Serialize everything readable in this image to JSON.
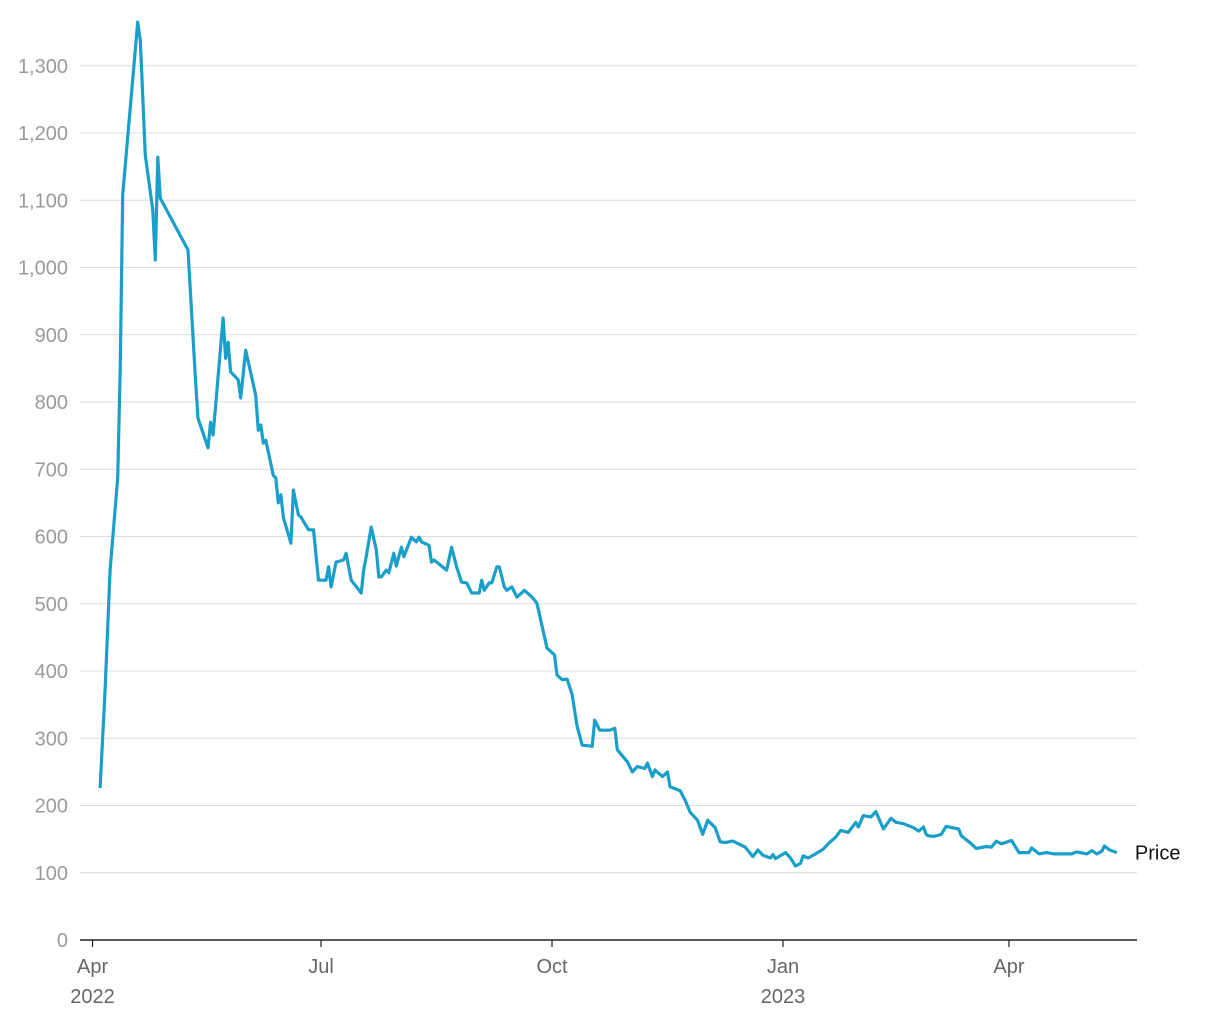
{
  "chart_data": {
    "type": "line",
    "x": [
      "2022-04-04",
      "2022-04-06",
      "2022-04-08",
      "2022-04-11",
      "2022-04-12",
      "2022-04-13",
      "2022-04-19",
      "2022-04-20",
      "2022-04-22",
      "2022-04-25",
      "2022-04-26",
      "2022-04-27",
      "2022-04-28",
      "2022-05-09",
      "2022-05-12",
      "2022-05-13",
      "2022-05-17",
      "2022-05-18",
      "2022-05-19",
      "2022-05-23",
      "2022-05-24",
      "2022-05-25",
      "2022-05-26",
      "2022-05-29",
      "2022-05-30",
      "2022-06-01",
      "2022-06-05",
      "2022-06-06",
      "2022-06-07",
      "2022-06-08",
      "2022-06-09",
      "2022-06-12",
      "2022-06-13",
      "2022-06-14",
      "2022-06-15",
      "2022-06-16",
      "2022-06-19",
      "2022-06-20",
      "2022-06-22",
      "2022-06-23",
      "2022-06-26",
      "2022-06-28",
      "2022-06-30",
      "2022-07-03",
      "2022-07-04",
      "2022-07-05",
      "2022-07-07",
      "2022-07-10",
      "2022-07-11",
      "2022-07-13",
      "2022-07-17",
      "2022-07-18",
      "2022-07-19",
      "2022-07-21",
      "2022-07-23",
      "2022-07-24",
      "2022-07-25",
      "2022-07-27",
      "2022-07-28",
      "2022-07-30",
      "2022-07-31",
      "2022-08-02",
      "2022-08-03",
      "2022-08-06",
      "2022-08-08",
      "2022-08-09",
      "2022-08-10",
      "2022-08-13",
      "2022-08-14",
      "2022-08-15",
      "2022-08-20",
      "2022-08-22",
      "2022-08-24",
      "2022-08-26",
      "2022-08-28",
      "2022-08-30",
      "2022-09-02",
      "2022-09-03",
      "2022-09-04",
      "2022-09-06",
      "2022-09-07",
      "2022-09-09",
      "2022-09-10",
      "2022-09-12",
      "2022-09-13",
      "2022-09-15",
      "2022-09-17",
      "2022-09-18",
      "2022-09-20",
      "2022-09-23",
      "2022-09-25",
      "2022-09-29",
      "2022-10-02",
      "2022-10-03",
      "2022-10-05",
      "2022-10-07",
      "2022-10-09",
      "2022-10-11",
      "2022-10-13",
      "2022-10-17",
      "2022-10-18",
      "2022-10-20",
      "2022-10-24",
      "2022-10-26",
      "2022-10-27",
      "2022-10-31",
      "2022-11-02",
      "2022-11-04",
      "2022-11-07",
      "2022-11-08",
      "2022-11-10",
      "2022-11-11",
      "2022-11-14",
      "2022-11-16",
      "2022-11-17",
      "2022-11-21",
      "2022-11-23",
      "2022-11-25",
      "2022-11-28",
      "2022-11-30",
      "2022-12-02",
      "2022-12-05",
      "2022-12-07",
      "2022-12-09",
      "2022-12-12",
      "2022-12-17",
      "2022-12-20",
      "2022-12-22",
      "2022-12-24",
      "2022-12-27",
      "2022-12-28",
      "2022-12-29",
      "2023-01-02",
      "2023-01-04",
      "2023-01-06",
      "2023-01-08",
      "2023-01-09",
      "2023-01-11",
      "2023-01-14",
      "2023-01-17",
      "2023-01-19",
      "2023-01-22",
      "2023-01-24",
      "2023-01-27",
      "2023-01-30",
      "2023-01-31",
      "2023-02-02",
      "2023-02-05",
      "2023-02-07",
      "2023-02-10",
      "2023-02-13",
      "2023-02-15",
      "2023-02-18",
      "2023-02-22",
      "2023-02-24",
      "2023-02-26",
      "2023-02-27",
      "2023-02-28",
      "2023-03-02",
      "2023-03-05",
      "2023-03-07",
      "2023-03-12",
      "2023-03-13",
      "2023-03-17",
      "2023-03-19",
      "2023-03-23",
      "2023-03-25",
      "2023-03-27",
      "2023-03-29",
      "2023-04-02",
      "2023-04-05",
      "2023-04-09",
      "2023-04-10",
      "2023-04-13",
      "2023-04-16",
      "2023-04-19",
      "2023-04-26",
      "2023-04-28",
      "2023-05-02",
      "2023-05-04",
      "2023-05-06",
      "2023-05-08",
      "2023-05-09",
      "2023-05-11",
      "2023-05-14"
    ],
    "series": [
      {
        "name": "Price",
        "color": "#1a9fcb",
        "values": [
          226,
          372,
          550,
          687,
          848,
          1108,
          1365,
          1338,
          1167,
          1085,
          1011,
          1164,
          1103,
          1026,
          833,
          776,
          732,
          770,
          751,
          925,
          865,
          889,
          845,
          833,
          806,
          877,
          810,
          758,
          766,
          739,
          743,
          691,
          687,
          650,
          662,
          628,
          590,
          669,
          632,
          629,
          610,
          610,
          535,
          535,
          555,
          525,
          562,
          565,
          575,
          535,
          516,
          550,
          570,
          614,
          580,
          540,
          540,
          550,
          546,
          575,
          556,
          584,
          570,
          599,
          592,
          599,
          592,
          587,
          562,
          565,
          550,
          584,
          555,
          532,
          531,
          516,
          516,
          535,
          520,
          531,
          531,
          555,
          555,
          525,
          520,
          525,
          510,
          513,
          520,
          510,
          501,
          434,
          424,
          394,
          387,
          388,
          365,
          318,
          290,
          288,
          327,
          312,
          312,
          315,
          283,
          265,
          250,
          258,
          255,
          263,
          243,
          253,
          243,
          250,
          228,
          222,
          208,
          190,
          178,
          157,
          178,
          167,
          146,
          145,
          147,
          138,
          124,
          134,
          126,
          122,
          127,
          121,
          130,
          122,
          110,
          114,
          125,
          122,
          128,
          135,
          143,
          153,
          163,
          160,
          175,
          168,
          185,
          183,
          191,
          165,
          181,
          175,
          173,
          167,
          162,
          168,
          157,
          155,
          154,
          157,
          169,
          165,
          155,
          143,
          136,
          139,
          138,
          147,
          143,
          148,
          130,
          130,
          137,
          128,
          130,
          128,
          128,
          131,
          128,
          133,
          128,
          132,
          140,
          134,
          130
        ]
      }
    ],
    "xlim": [
      "2022-03-27",
      "2023-05-22"
    ],
    "xticks": [
      {
        "value": "2022-04-01",
        "label": "Apr 2022"
      },
      {
        "value": "2022-07-01",
        "label": "Jul"
      },
      {
        "value": "2022-10-01",
        "label": "Oct"
      },
      {
        "value": "2023-01-01",
        "label": "Jan 2023"
      },
      {
        "value": "2023-04-01",
        "label": "Apr"
      }
    ],
    "ylim": [
      0,
      1370
    ],
    "yticks": [
      0,
      100,
      200,
      300,
      400,
      500,
      600,
      700,
      800,
      900,
      {
        "value": 1000,
        "label": "1,000"
      },
      {
        "value": 1100,
        "label": "1,100"
      },
      {
        "value": 1200,
        "label": "1,200"
      },
      {
        "value": 1300,
        "label": "1,300"
      }
    ],
    "grid": true
  }
}
